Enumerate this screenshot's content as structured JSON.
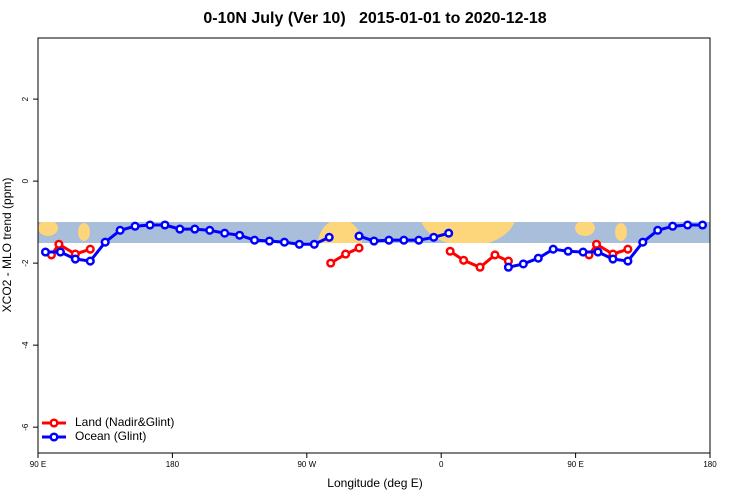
{
  "chart_data": {
    "type": "line",
    "title": "0-10N July (Ver 10)   2015-01-01 to 2020-12-18",
    "x_label": "Longitude (deg E)",
    "y_label": "XCO2 - MLO trend (ppm)",
    "xlim": [
      90,
      540
    ],
    "ylim": [
      -6.63,
      3.49
    ],
    "xticks": [
      {
        "value": 90,
        "label": "90 E"
      },
      180,
      {
        "value": 270,
        "label": "90 W"
      },
      {
        "value": 360,
        "label": "0"
      },
      {
        "value": 450,
        "label": "90 E"
      },
      {
        "value": 540,
        "label": "180"
      }
    ],
    "yticks": [
      -6,
      -4,
      -2,
      0,
      2
    ],
    "legend": "bottom-left",
    "series": [
      {
        "name": "Land (Nadir&Glint)",
        "color": "#ff0000",
        "x": [
          99,
          104,
          115,
          125,
          205,
          286,
          296,
          305,
          366,
          375,
          386,
          396,
          405,
          459,
          464,
          475,
          485
        ],
        "values": [
          -1.8,
          -1.54,
          -1.78,
          -1.66,
          null,
          -2.0,
          -1.78,
          -1.63,
          -1.71,
          -1.93,
          -2.1,
          -1.8,
          -1.95,
          -1.8,
          -1.54,
          -1.78,
          -1.66
        ]
      },
      {
        "name": "Ocean (Glint)",
        "color": "#0000ff",
        "x": [
          95,
          105,
          115,
          125,
          135,
          145,
          155,
          165,
          175,
          185,
          195,
          205,
          215,
          225,
          235,
          245,
          255,
          265,
          275,
          285,
          295,
          305,
          315,
          325,
          335,
          345,
          355,
          365,
          385,
          405,
          415,
          425,
          435,
          445,
          455,
          465,
          475,
          485,
          495,
          505,
          515,
          525,
          535
        ],
        "values": [
          -1.73,
          -1.73,
          -1.9,
          -1.95,
          -1.49,
          -1.2,
          -1.1,
          -1.07,
          -1.07,
          -1.17,
          -1.17,
          -1.2,
          -1.27,
          -1.32,
          -1.44,
          -1.46,
          -1.49,
          -1.54,
          -1.54,
          -1.37,
          null,
          -1.34,
          -1.46,
          -1.44,
          -1.44,
          -1.44,
          -1.37,
          -1.27,
          null,
          -2.1,
          -2.02,
          -1.88,
          -1.66,
          -1.71,
          -1.73,
          -1.73,
          -1.9,
          -1.95,
          -1.49,
          -1.2,
          -1.1,
          -1.07,
          -1.07
        ]
      }
    ]
  }
}
